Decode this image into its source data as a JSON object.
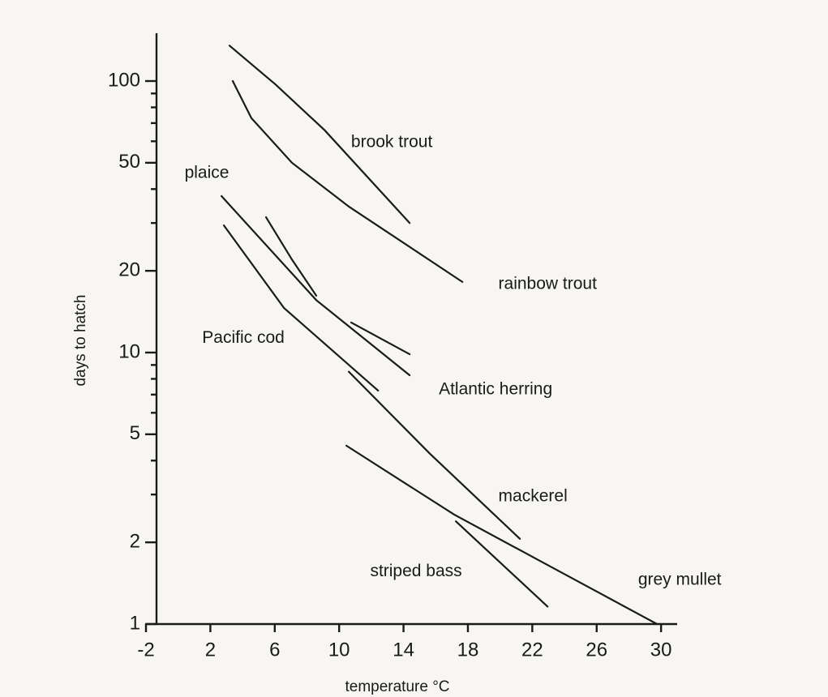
{
  "chart_data": {
    "type": "line",
    "xlabel": "temperature °C",
    "ylabel": "days to hatch",
    "xlim": [
      -2,
      31
    ],
    "ylim": [
      1,
      150
    ],
    "xticks": [
      -2,
      2,
      6,
      10,
      14,
      18,
      22,
      26,
      30
    ],
    "yticks": [
      1,
      2,
      5,
      10,
      20,
      50,
      100
    ],
    "yminorticks": [
      3,
      4,
      6,
      7,
      8,
      9,
      30,
      40,
      60,
      70,
      80,
      90
    ],
    "ylog": true,
    "grid": false,
    "series": [
      {
        "name": "brook trout",
        "color": "#1a1a1a",
        "x": [
          3.19,
          6.06,
          9.09,
          14.38
        ],
        "values": [
          135,
          97,
          66,
          30
        ]
      },
      {
        "name": "rainbow trout",
        "color": "#1a1a1a",
        "x": [
          3.39,
          4.55,
          7.07,
          10.6,
          17.66
        ],
        "values": [
          100,
          73,
          50,
          34.5,
          18.2
        ]
      },
      {
        "name": "plaice",
        "color": "#1a1a1a",
        "x": [
          2.69,
          8.58,
          14.38
        ],
        "values": [
          37.7,
          15.6,
          8.25
        ]
      },
      {
        "name": "Pacific cod",
        "color": "#1a1a1a",
        "x": [
          2.84,
          6.57,
          12.42
        ],
        "values": [
          29.4,
          14.6,
          7.24
        ]
      },
      {
        "name": "Atlantic herring",
        "color": "#1a1a1a",
        "x": [
          5.46,
          7.07,
          8.58,
          9.7,
          10.75,
          14.38
        ],
        "values": [
          31.5,
          22,
          16.2,
          null,
          12.9,
          9.86
        ]
      },
      {
        "name": "mackerel",
        "color": "#1a1a1a",
        "x": [
          10.6,
          15.64,
          21.23
        ],
        "values": [
          8.5,
          4.24,
          2.06
        ]
      },
      {
        "name": "grey mullet",
        "color": "#1a1a1a",
        "x": [
          10.45,
          17.15,
          23.2,
          29.75
        ],
        "values": [
          4.54,
          2.53,
          1.62,
          1
        ]
      },
      {
        "name": "striped bass",
        "color": "#1a1a1a",
        "x": [
          17.25,
          22.95
        ],
        "values": [
          2.39,
          1.16
        ]
      }
    ],
    "annotations": [
      {
        "text": "brook trout",
        "x": 13.27,
        "y": 59.3
      },
      {
        "text": "rainbow trout",
        "x": 22.95,
        "y": 17.8
      },
      {
        "text": "plaice",
        "x": 1.78,
        "y": 45.7
      },
      {
        "text": "Pacific cod",
        "x": 4.05,
        "y": 11.3
      },
      {
        "text": "Atlantic herring",
        "x": 19.72,
        "y": 7.3
      },
      {
        "text": "mackerel",
        "x": 22.04,
        "y": 2.94
      },
      {
        "text": "striped bass",
        "x": 14.78,
        "y": 1.56
      },
      {
        "text": "grey mullet",
        "x": 31.16,
        "y": 1.45
      }
    ]
  }
}
